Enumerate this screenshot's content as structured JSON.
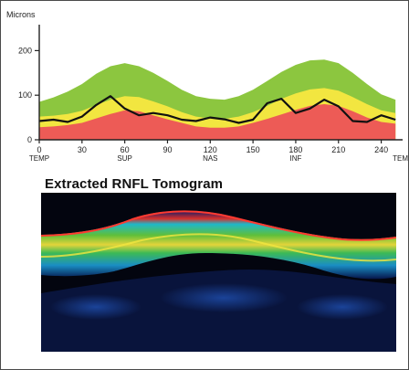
{
  "chart_data": {
    "type": "area",
    "ylabel": "Microns",
    "ylim": [
      0,
      250
    ],
    "xlim": [
      0,
      255
    ],
    "y_ticks": [
      "0",
      "100",
      "200"
    ],
    "y_tick_values": [
      0,
      100,
      200
    ],
    "x_ticks": [
      {
        "value": 0,
        "label": "0",
        "sub": "TEMP"
      },
      {
        "value": 30,
        "label": "30",
        "sub": ""
      },
      {
        "value": 60,
        "label": "60",
        "sub": "SUP"
      },
      {
        "value": 90,
        "label": "90",
        "sub": ""
      },
      {
        "value": 120,
        "label": "120",
        "sub": "NAS"
      },
      {
        "value": 150,
        "label": "150",
        "sub": ""
      },
      {
        "value": 180,
        "label": "180",
        "sub": "INF"
      },
      {
        "value": 210,
        "label": "210",
        "sub": ""
      },
      {
        "value": 240,
        "label": "240",
        "sub": ""
      },
      {
        "value": 256,
        "label": "",
        "sub": "TEM"
      }
    ],
    "x": [
      0,
      10,
      20,
      30,
      40,
      50,
      60,
      70,
      80,
      90,
      100,
      110,
      120,
      130,
      140,
      150,
      160,
      170,
      180,
      190,
      200,
      210,
      220,
      230,
      240,
      250
    ],
    "series": [
      {
        "color": "#ed5b56",
        "values": [
          28,
          30,
          33,
          38,
          48,
          58,
          66,
          64,
          55,
          46,
          38,
          30,
          27,
          27,
          30,
          38,
          47,
          57,
          67,
          76,
          80,
          76,
          64,
          50,
          40,
          36
        ]
      },
      {
        "color": "#f2e640",
        "values": [
          52,
          54,
          58,
          65,
          78,
          90,
          98,
          96,
          86,
          75,
          62,
          52,
          48,
          47,
          52,
          62,
          76,
          92,
          104,
          113,
          116,
          110,
          96,
          80,
          66,
          60
        ]
      },
      {
        "color": "#8cc63f",
        "values": [
          85,
          95,
          108,
          125,
          148,
          165,
          172,
          165,
          150,
          132,
          112,
          98,
          92,
          90,
          98,
          112,
          132,
          152,
          168,
          178,
          180,
          172,
          150,
          125,
          102,
          90
        ]
      },
      {
        "color": "#111111",
        "values": [
          42,
          45,
          40,
          52,
          78,
          98,
          70,
          55,
          60,
          55,
          45,
          42,
          50,
          46,
          38,
          45,
          82,
          92,
          60,
          70,
          90,
          75,
          42,
          40,
          55,
          45
        ]
      }
    ]
  },
  "tomogram": {
    "title": "Extracted RNFL Tomogram"
  }
}
